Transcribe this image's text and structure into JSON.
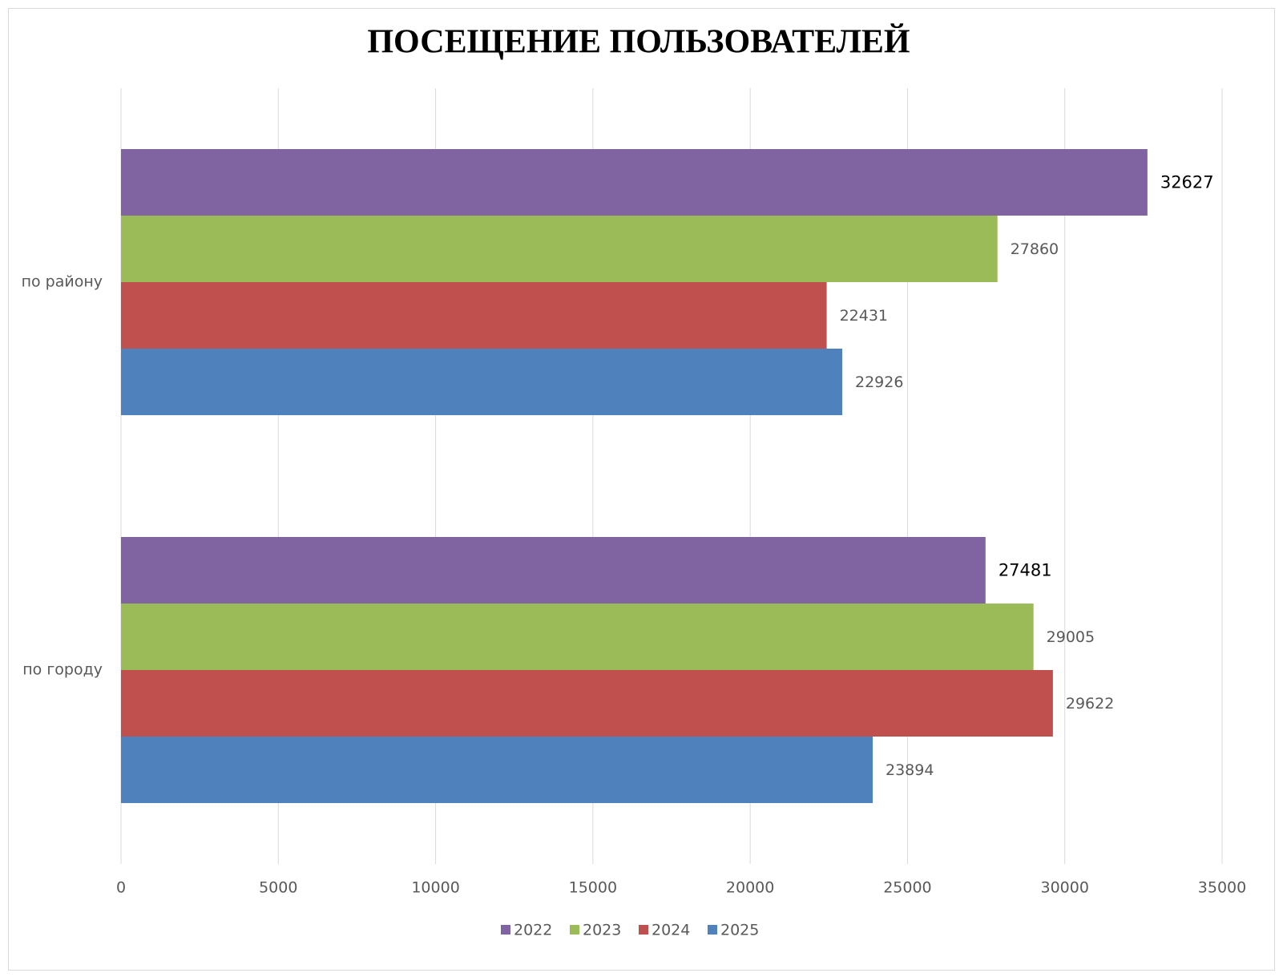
{
  "chart_data": {
    "type": "bar",
    "orientation": "horizontal",
    "title": "ПОСЕЩЕНИЕ ПОЛЬЗОВАТЕЛЕЙ",
    "categories": [
      "по району",
      "по городу"
    ],
    "series": [
      {
        "name": "2022",
        "color": "#8064a2",
        "values": [
          32627,
          27481
        ]
      },
      {
        "name": "2023",
        "color": "#9bbb59",
        "values": [
          27860,
          29005
        ]
      },
      {
        "name": "2024",
        "color": "#c0504d",
        "values": [
          22431,
          29622
        ]
      },
      {
        "name": "2025",
        "color": "#4f81bd",
        "values": [
          22926,
          23894
        ]
      }
    ],
    "xlim": [
      0,
      35000
    ],
    "xticks": [
      0,
      5000,
      10000,
      15000,
      20000,
      25000,
      30000,
      35000
    ],
    "grid": true,
    "legend": "bottom"
  }
}
